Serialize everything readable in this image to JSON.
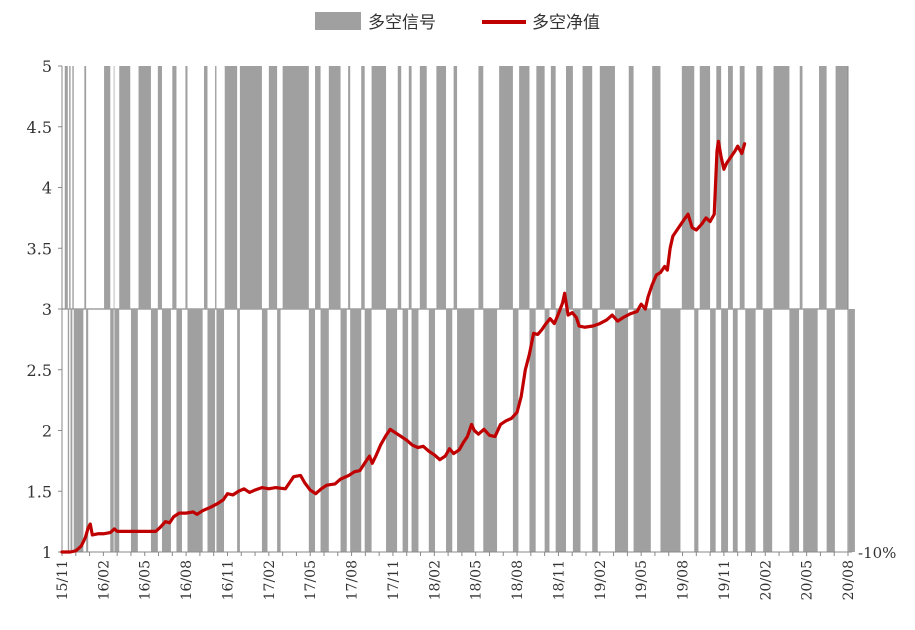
{
  "chart_data": {
    "type": "line",
    "title": "",
    "xlabel": "",
    "ylabel": "",
    "ylim": [
      1,
      5
    ],
    "yticks": [
      "1",
      "1.5",
      "2",
      "2.5",
      "3",
      "3.5",
      "4",
      "4.5",
      "5"
    ],
    "right_axis_label": "-10%",
    "categories": [
      "15/11",
      "16/02",
      "16/05",
      "16/08",
      "16/11",
      "17/02",
      "17/05",
      "17/08",
      "17/11",
      "18/02",
      "18/05",
      "18/08",
      "18/11",
      "19/02",
      "19/05",
      "19/08",
      "19/11",
      "20/02",
      "20/05",
      "20/08"
    ],
    "legend": [
      {
        "name": "多空信号",
        "color": "#a0a0a0",
        "style": "bar"
      },
      {
        "name": "多空净值",
        "color": "#c00000",
        "style": "line"
      }
    ],
    "grid": false,
    "legend_position": "top-center",
    "series": [
      {
        "name": "多空信号",
        "type": "signal",
        "color": "#a0a0a0",
        "baseline": 3,
        "long_level": 5,
        "short_level": 1,
        "intervals": [
          [
            0.2,
            0.42,
            1
          ],
          [
            0.42,
            0.52,
            -1
          ],
          [
            0.52,
            0.62,
            1
          ],
          [
            0.62,
            0.75,
            -1
          ],
          [
            0.75,
            0.85,
            1
          ],
          [
            0.85,
            1.55,
            -1
          ],
          [
            1.62,
            1.75,
            1
          ],
          [
            1.75,
            1.9,
            -1
          ],
          [
            3.05,
            3.5,
            1
          ],
          [
            3.5,
            3.75,
            -1
          ],
          [
            3.75,
            3.8,
            1
          ],
          [
            3.8,
            4.15,
            -1
          ],
          [
            4.15,
            4.95,
            1
          ],
          [
            5.0,
            5.5,
            -1
          ],
          [
            5.55,
            6.45,
            1
          ],
          [
            6.45,
            6.95,
            -1
          ],
          [
            6.95,
            7.25,
            1
          ],
          [
            7.25,
            7.9,
            -1
          ],
          [
            8.0,
            8.3,
            1
          ],
          [
            8.3,
            8.7,
            -1
          ],
          [
            8.95,
            9.1,
            1
          ],
          [
            9.1,
            10.2,
            -1
          ],
          [
            10.3,
            10.55,
            1
          ],
          [
            10.55,
            11.1,
            -1
          ],
          [
            11.1,
            11.2,
            1
          ],
          [
            11.2,
            11.75,
            -1
          ],
          [
            11.8,
            12.7,
            1
          ],
          [
            12.7,
            12.9,
            -1
          ],
          [
            12.9,
            14.5,
            1
          ],
          [
            14.5,
            14.9,
            -1
          ],
          [
            15.0,
            15.6,
            1
          ],
          [
            15.6,
            15.85,
            -1
          ],
          [
            16.0,
            17.9,
            1
          ],
          [
            17.9,
            18.35,
            -1
          ],
          [
            18.35,
            18.75,
            1
          ],
          [
            18.75,
            19.35,
            -1
          ],
          [
            19.35,
            20.2,
            1
          ],
          [
            20.2,
            20.65,
            -1
          ],
          [
            20.75,
            20.9,
            1
          ],
          [
            20.9,
            21.7,
            -1
          ],
          [
            21.7,
            21.95,
            1
          ],
          [
            21.95,
            22.45,
            -1
          ],
          [
            22.45,
            23.5,
            1
          ],
          [
            23.5,
            24.3,
            -1
          ],
          [
            24.35,
            24.6,
            1
          ],
          [
            24.7,
            25.1,
            -1
          ],
          [
            25.15,
            25.35,
            1
          ],
          [
            25.35,
            25.85,
            -1
          ],
          [
            25.95,
            26.45,
            1
          ],
          [
            26.6,
            27.05,
            -1
          ],
          [
            27.15,
            27.85,
            1
          ],
          [
            27.85,
            28.3,
            -1
          ],
          [
            28.4,
            28.65,
            1
          ],
          [
            28.65,
            29.9,
            -1
          ],
          [
            30.2,
            30.55,
            1
          ],
          [
            30.55,
            31.55,
            -1
          ],
          [
            31.7,
            32.7,
            1
          ],
          [
            32.7,
            33.1,
            -1
          ],
          [
            33.15,
            33.9,
            1
          ],
          [
            33.9,
            34.35,
            -1
          ],
          [
            34.4,
            35.0,
            1
          ],
          [
            35.0,
            35.35,
            -1
          ],
          [
            35.45,
            35.8,
            1
          ],
          [
            35.8,
            36.55,
            -1
          ],
          [
            36.55,
            37.05,
            1
          ],
          [
            37.05,
            37.6,
            -1
          ],
          [
            37.75,
            38.45,
            1
          ],
          [
            38.45,
            38.85,
            -1
          ],
          [
            39.0,
            40.1,
            1
          ],
          [
            40.1,
            41.05,
            -1
          ],
          [
            41.1,
            41.45,
            1
          ],
          [
            41.45,
            42.7,
            -1
          ],
          [
            42.8,
            43.4,
            1
          ],
          [
            43.4,
            44.85,
            -1
          ],
          [
            44.95,
            45.85,
            1
          ],
          [
            45.85,
            46.15,
            -1
          ],
          [
            46.25,
            47.0,
            1
          ],
          [
            47.0,
            47.4,
            -1
          ],
          [
            47.45,
            47.8,
            1
          ],
          [
            47.8,
            48.3,
            -1
          ],
          [
            48.3,
            48.65,
            1
          ],
          [
            48.65,
            49.0,
            -1
          ],
          [
            49.15,
            49.5,
            1
          ],
          [
            49.55,
            50.3,
            -1
          ],
          [
            50.35,
            50.8,
            1
          ],
          [
            50.85,
            51.5,
            -1
          ],
          [
            51.6,
            52.75,
            1
          ],
          [
            52.75,
            53.45,
            -1
          ],
          [
            53.5,
            53.7,
            1
          ],
          [
            53.75,
            54.8,
            -1
          ],
          [
            54.9,
            55.45,
            1
          ],
          [
            55.45,
            56.05,
            -1
          ],
          [
            56.1,
            57.0,
            1
          ],
          [
            57.05,
            57.5,
            -1
          ]
        ]
      },
      {
        "name": "多空净值",
        "type": "line",
        "color": "#c00000",
        "points": [
          [
            0,
            1.0
          ],
          [
            0.6,
            1.0
          ],
          [
            1.0,
            1.01
          ],
          [
            1.4,
            1.05
          ],
          [
            1.7,
            1.12
          ],
          [
            1.9,
            1.2
          ],
          [
            2.05,
            1.23
          ],
          [
            2.2,
            1.14
          ],
          [
            2.6,
            1.15
          ],
          [
            3.0,
            1.15
          ],
          [
            3.5,
            1.16
          ],
          [
            3.8,
            1.19
          ],
          [
            4.0,
            1.17
          ],
          [
            5.0,
            1.17
          ],
          [
            6.0,
            1.17
          ],
          [
            6.8,
            1.17
          ],
          [
            7.1,
            1.2
          ],
          [
            7.5,
            1.25
          ],
          [
            7.8,
            1.24
          ],
          [
            8.1,
            1.29
          ],
          [
            8.5,
            1.32
          ],
          [
            9.0,
            1.32
          ],
          [
            9.5,
            1.33
          ],
          [
            9.8,
            1.31
          ],
          [
            10.2,
            1.34
          ],
          [
            10.8,
            1.37
          ],
          [
            11.3,
            1.4
          ],
          [
            11.7,
            1.43
          ],
          [
            12.0,
            1.48
          ],
          [
            12.4,
            1.47
          ],
          [
            12.8,
            1.5
          ],
          [
            13.2,
            1.52
          ],
          [
            13.6,
            1.49
          ],
          [
            14.0,
            1.51
          ],
          [
            14.5,
            1.53
          ],
          [
            15.0,
            1.52
          ],
          [
            15.5,
            1.53
          ],
          [
            16.2,
            1.52
          ],
          [
            16.5,
            1.57
          ],
          [
            16.8,
            1.62
          ],
          [
            17.3,
            1.63
          ],
          [
            17.6,
            1.57
          ],
          [
            18.0,
            1.51
          ],
          [
            18.4,
            1.48
          ],
          [
            18.8,
            1.52
          ],
          [
            19.2,
            1.55
          ],
          [
            19.8,
            1.56
          ],
          [
            20.2,
            1.6
          ],
          [
            20.8,
            1.63
          ],
          [
            21.2,
            1.66
          ],
          [
            21.6,
            1.67
          ],
          [
            22.0,
            1.74
          ],
          [
            22.3,
            1.79
          ],
          [
            22.5,
            1.73
          ],
          [
            22.8,
            1.8
          ],
          [
            23.1,
            1.88
          ],
          [
            23.5,
            1.96
          ],
          [
            23.8,
            2.01
          ],
          [
            24.2,
            1.98
          ],
          [
            24.6,
            1.95
          ],
          [
            25.0,
            1.92
          ],
          [
            25.4,
            1.88
          ],
          [
            25.8,
            1.86
          ],
          [
            26.2,
            1.87
          ],
          [
            26.6,
            1.83
          ],
          [
            27.0,
            1.8
          ],
          [
            27.4,
            1.76
          ],
          [
            27.8,
            1.79
          ],
          [
            28.1,
            1.85
          ],
          [
            28.4,
            1.81
          ],
          [
            28.8,
            1.84
          ],
          [
            29.1,
            1.9
          ],
          [
            29.4,
            1.95
          ],
          [
            29.7,
            2.05
          ],
          [
            29.9,
            2.0
          ],
          [
            30.2,
            1.97
          ],
          [
            30.6,
            2.01
          ],
          [
            31.0,
            1.96
          ],
          [
            31.4,
            1.95
          ],
          [
            31.8,
            2.05
          ],
          [
            32.2,
            2.08
          ],
          [
            32.6,
            2.1
          ],
          [
            33.0,
            2.15
          ],
          [
            33.3,
            2.28
          ],
          [
            33.6,
            2.5
          ],
          [
            33.9,
            2.63
          ],
          [
            34.2,
            2.8
          ],
          [
            34.5,
            2.79
          ],
          [
            34.8,
            2.83
          ],
          [
            35.1,
            2.88
          ],
          [
            35.4,
            2.92
          ],
          [
            35.7,
            2.88
          ],
          [
            36.0,
            2.96
          ],
          [
            36.3,
            3.05
          ],
          [
            36.45,
            3.13
          ],
          [
            36.7,
            2.95
          ],
          [
            37.0,
            2.97
          ],
          [
            37.3,
            2.93
          ],
          [
            37.5,
            2.86
          ],
          [
            37.9,
            2.85
          ],
          [
            38.5,
            2.86
          ],
          [
            39.0,
            2.88
          ],
          [
            39.5,
            2.91
          ],
          [
            39.9,
            2.95
          ],
          [
            40.3,
            2.9
          ],
          [
            40.7,
            2.93
          ],
          [
            41.2,
            2.96
          ],
          [
            41.7,
            2.98
          ],
          [
            42.0,
            3.04
          ],
          [
            42.3,
            3.0
          ],
          [
            42.5,
            3.1
          ],
          [
            42.8,
            3.2
          ],
          [
            43.1,
            3.28
          ],
          [
            43.4,
            3.3
          ],
          [
            43.7,
            3.35
          ],
          [
            43.9,
            3.32
          ],
          [
            44.1,
            3.5
          ],
          [
            44.3,
            3.6
          ],
          [
            44.6,
            3.65
          ],
          [
            44.9,
            3.7
          ],
          [
            45.2,
            3.75
          ],
          [
            45.4,
            3.78
          ],
          [
            45.7,
            3.67
          ],
          [
            46.0,
            3.65
          ],
          [
            46.4,
            3.7
          ],
          [
            46.7,
            3.75
          ],
          [
            47.0,
            3.72
          ],
          [
            47.3,
            3.78
          ],
          [
            47.5,
            4.3
          ],
          [
            47.6,
            4.38
          ],
          [
            47.8,
            4.25
          ],
          [
            48.0,
            4.15
          ],
          [
            48.2,
            4.2
          ],
          [
            48.5,
            4.25
          ],
          [
            48.8,
            4.3
          ],
          [
            49.0,
            4.34
          ],
          [
            49.3,
            4.28
          ],
          [
            49.5,
            4.36
          ]
        ]
      }
    ]
  }
}
